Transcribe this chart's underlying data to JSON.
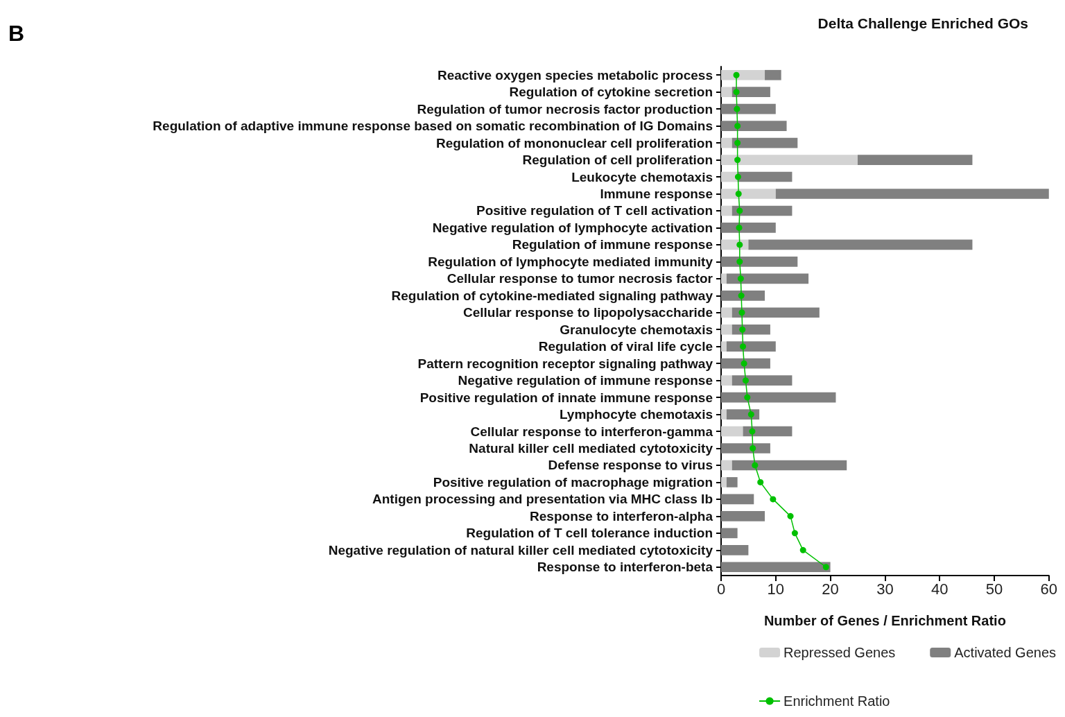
{
  "chart_data": {
    "type": "bar",
    "orientation": "horizontal",
    "stacked": true,
    "title": "Delta Challenge Enriched GOs",
    "xlabel": "Number of Genes / Enrichment Ratio",
    "annotations": [
      "B"
    ],
    "categories": [
      "Reactive oxygen species metabolic process",
      "Regulation of cytokine secretion",
      "Regulation of tumor necrosis factor production",
      "Regulation of adaptive immune response based on somatic recombination of IG Domains",
      "Regulation of mononuclear cell proliferation",
      "Regulation of cell proliferation",
      "Leukocyte chemotaxis",
      "Immune response",
      "Positive regulation of T cell activation",
      "Negative regulation of lymphocyte activation",
      "Regulation of immune response",
      "Regulation of lymphocyte mediated immunity",
      "Cellular response to tumor necrosis factor",
      "Regulation of cytokine-mediated signaling pathway",
      "Cellular response to lipopolysaccharide",
      "Granulocyte chemotaxis",
      "Regulation of viral life cycle",
      "Pattern recognition receptor signaling pathway",
      "Negative regulation of immune response",
      "Positive regulation of innate immune response",
      "Lymphocyte chemotaxis",
      "Cellular response to interferon-gamma",
      "Natural killer cell mediated cytotoxicity",
      "Defense response to virus",
      "Positive regulation of macrophage migration",
      "Antigen processing and presentation via MHC class Ib",
      "Response to interferon-alpha",
      "Regulation of T cell tolerance induction",
      "Negative regulation of natural killer cell mediated cytotoxicity",
      "Response to interferon-beta"
    ],
    "series": [
      {
        "name": "Repressed Genes",
        "color": "#d3d3d3",
        "values": [
          8,
          2,
          0,
          0,
          2,
          25,
          3,
          10,
          2,
          0,
          5,
          0,
          1,
          0,
          2,
          2,
          1,
          0,
          2,
          0,
          1,
          4,
          0,
          2,
          1,
          0,
          0,
          0,
          0,
          0
        ]
      },
      {
        "name": "Activated Genes",
        "color": "#808080",
        "values": [
          3,
          7,
          10,
          12,
          12,
          21,
          10,
          50,
          11,
          10,
          41,
          14,
          15,
          8,
          16,
          7,
          9,
          9,
          11,
          21,
          6,
          9,
          9,
          21,
          2,
          6,
          8,
          3,
          5,
          20
        ]
      },
      {
        "name": "Enrichment Ratio",
        "type": "line",
        "color": "#00c000",
        "marker": "circle",
        "values": [
          2.8,
          2.8,
          2.9,
          3.0,
          3.0,
          3.0,
          3.1,
          3.2,
          3.4,
          3.3,
          3.4,
          3.4,
          3.6,
          3.7,
          3.8,
          3.9,
          4.0,
          4.2,
          4.5,
          4.8,
          5.5,
          5.7,
          5.8,
          6.2,
          7.2,
          9.5,
          12.7,
          13.5,
          15,
          19.2
        ]
      }
    ],
    "xlim": [
      0,
      60
    ],
    "xticks": [
      0,
      10,
      20,
      30,
      40,
      50,
      60
    ],
    "grid": false,
    "legend": "bottom right"
  }
}
